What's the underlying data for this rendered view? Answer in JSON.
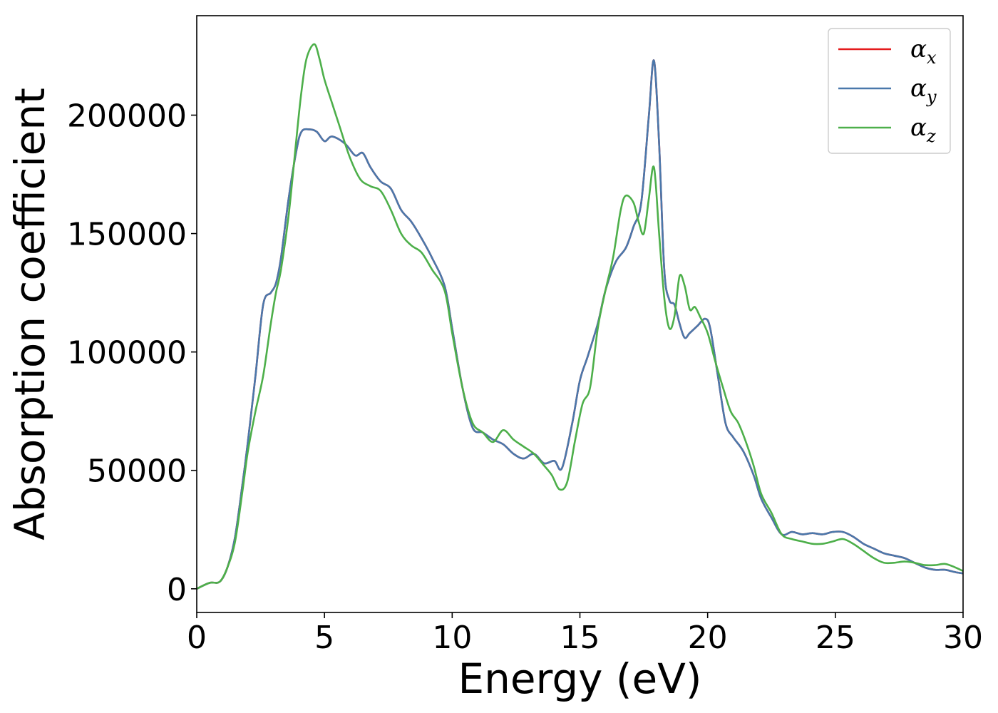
{
  "chart_data": {
    "type": "line",
    "xlabel": "Energy (eV)",
    "ylabel": "Absorption coefficient",
    "xlim": [
      0,
      30
    ],
    "ylim": [
      -10000,
      242000
    ],
    "xticks": [
      0,
      5,
      10,
      15,
      20,
      25,
      30
    ],
    "yticks": [
      0,
      50000,
      100000,
      150000,
      200000
    ],
    "grid": false,
    "legend_position": "top-right",
    "series": [
      {
        "name": "α_x",
        "label_main": "α",
        "label_sub": "x",
        "color": "#e41a1c",
        "x": [
          0,
          0.5,
          0.9,
          1.2,
          1.5,
          1.8,
          2.0,
          2.3,
          2.6,
          2.9,
          3.1,
          3.3,
          3.6,
          3.9,
          4.1,
          4.4,
          4.7,
          5.0,
          5.3,
          5.8,
          6.2,
          6.5,
          6.8,
          7.2,
          7.6,
          8.0,
          8.4,
          8.8,
          9.2,
          9.7,
          10.0,
          10.4,
          10.8,
          11.2,
          11.6,
          12.0,
          12.4,
          12.8,
          13.2,
          13.6,
          14.0,
          14.3,
          14.7,
          15.0,
          15.3,
          15.7,
          16.0,
          16.4,
          16.8,
          17.1,
          17.4,
          17.7,
          17.9,
          18.1,
          18.3,
          18.5,
          18.7,
          18.9,
          19.1,
          19.3,
          19.6,
          19.9,
          20.1,
          20.4,
          20.7,
          21.0,
          21.4,
          21.8,
          22.1,
          22.5,
          22.9,
          23.3,
          23.7,
          24.1,
          24.5,
          24.9,
          25.3,
          25.7,
          26.1,
          26.5,
          26.9,
          27.3,
          27.7,
          28.1,
          28.5,
          28.9,
          29.3,
          29.7,
          30.0
        ],
        "y": [
          0,
          2500,
          3000,
          9000,
          22000,
          45000,
          62000,
          90000,
          120000,
          125000,
          129000,
          140000,
          165000,
          185000,
          193000,
          194000,
          193000,
          189000,
          191000,
          188000,
          183000,
          184000,
          178000,
          172000,
          169000,
          160000,
          155000,
          148000,
          140000,
          128000,
          110000,
          85000,
          68000,
          66000,
          63000,
          61000,
          57000,
          55000,
          57000,
          53000,
          54000,
          51000,
          70000,
          88000,
          98000,
          112000,
          126000,
          138000,
          144000,
          153000,
          163000,
          200000,
          223000,
          188000,
          135000,
          122000,
          120000,
          112000,
          106000,
          108000,
          111000,
          114000,
          110000,
          90000,
          70000,
          64000,
          58000,
          48000,
          38000,
          30000,
          23000,
          24000,
          23000,
          23500,
          23000,
          24000,
          24000,
          22000,
          19000,
          17000,
          15000,
          14000,
          13000,
          11000,
          9000,
          8000,
          8000,
          7000,
          6500
        ]
      },
      {
        "name": "α_y",
        "label_main": "α",
        "label_sub": "y",
        "color": "#4a78ab",
        "x": [
          0,
          0.5,
          0.9,
          1.2,
          1.5,
          1.8,
          2.0,
          2.3,
          2.6,
          2.9,
          3.1,
          3.3,
          3.6,
          3.9,
          4.1,
          4.4,
          4.7,
          5.0,
          5.3,
          5.8,
          6.2,
          6.5,
          6.8,
          7.2,
          7.6,
          8.0,
          8.4,
          8.8,
          9.2,
          9.7,
          10.0,
          10.4,
          10.8,
          11.2,
          11.6,
          12.0,
          12.4,
          12.8,
          13.2,
          13.6,
          14.0,
          14.3,
          14.7,
          15.0,
          15.3,
          15.7,
          16.0,
          16.4,
          16.8,
          17.1,
          17.4,
          17.7,
          17.9,
          18.1,
          18.3,
          18.5,
          18.7,
          18.9,
          19.1,
          19.3,
          19.6,
          19.9,
          20.1,
          20.4,
          20.7,
          21.0,
          21.4,
          21.8,
          22.1,
          22.5,
          22.9,
          23.3,
          23.7,
          24.1,
          24.5,
          24.9,
          25.3,
          25.7,
          26.1,
          26.5,
          26.9,
          27.3,
          27.7,
          28.1,
          28.5,
          28.9,
          29.3,
          29.7,
          30.0
        ],
        "y": [
          0,
          2500,
          3000,
          9000,
          22000,
          45000,
          62000,
          90000,
          120000,
          125000,
          129000,
          140000,
          165000,
          185000,
          193000,
          194000,
          193000,
          189000,
          191000,
          188000,
          183000,
          184000,
          178000,
          172000,
          169000,
          160000,
          155000,
          148000,
          140000,
          128000,
          110000,
          85000,
          68000,
          66000,
          63000,
          61000,
          57000,
          55000,
          57000,
          53000,
          54000,
          51000,
          70000,
          88000,
          98000,
          112000,
          126000,
          138000,
          144000,
          153000,
          163000,
          200000,
          223000,
          188000,
          135000,
          122000,
          120000,
          112000,
          106000,
          108000,
          111000,
          114000,
          110000,
          90000,
          70000,
          64000,
          58000,
          48000,
          38000,
          30000,
          23000,
          24000,
          23000,
          23500,
          23000,
          24000,
          24000,
          22000,
          19000,
          17000,
          15000,
          14000,
          13000,
          11000,
          9000,
          8000,
          8000,
          7000,
          6500
        ]
      },
      {
        "name": "α_z",
        "label_main": "α",
        "label_sub": "z",
        "color": "#4daf4a",
        "x": [
          0,
          0.5,
          0.9,
          1.2,
          1.5,
          1.8,
          2.0,
          2.3,
          2.6,
          2.9,
          3.1,
          3.3,
          3.6,
          3.9,
          4.1,
          4.3,
          4.6,
          4.8,
          5.0,
          5.3,
          5.6,
          6.0,
          6.4,
          6.8,
          7.2,
          7.6,
          8.0,
          8.4,
          8.8,
          9.2,
          9.7,
          10.0,
          10.4,
          10.8,
          11.2,
          11.6,
          12.0,
          12.4,
          12.8,
          13.2,
          13.6,
          13.9,
          14.2,
          14.5,
          14.8,
          15.1,
          15.4,
          15.7,
          16.0,
          16.3,
          16.6,
          16.8,
          17.1,
          17.3,
          17.5,
          17.7,
          17.9,
          18.1,
          18.3,
          18.5,
          18.7,
          18.9,
          19.1,
          19.3,
          19.5,
          19.7,
          20.0,
          20.3,
          20.6,
          20.9,
          21.2,
          21.5,
          21.8,
          22.1,
          22.5,
          22.9,
          23.3,
          23.7,
          24.1,
          24.5,
          24.9,
          25.3,
          25.7,
          26.1,
          26.5,
          26.9,
          27.3,
          27.7,
          28.1,
          28.5,
          28.9,
          29.3,
          29.7,
          30.0
        ],
        "y": [
          0,
          2500,
          3000,
          9000,
          20000,
          42000,
          58000,
          75000,
          90000,
          112000,
          125000,
          135000,
          158000,
          190000,
          210000,
          224000,
          230000,
          224000,
          215000,
          205000,
          195000,
          182000,
          173000,
          170000,
          168000,
          160000,
          150000,
          145000,
          142000,
          135000,
          126000,
          108000,
          85000,
          70000,
          66000,
          62000,
          67000,
          63000,
          60000,
          57000,
          52000,
          48000,
          42000,
          45000,
          62000,
          78000,
          85000,
          110000,
          126000,
          140000,
          160000,
          166000,
          163000,
          155000,
          150000,
          165000,
          178000,
          150000,
          123000,
          110000,
          115000,
          132000,
          128000,
          118000,
          119000,
          115000,
          108000,
          96000,
          85000,
          75000,
          70000,
          62000,
          52000,
          40000,
          32000,
          23000,
          21000,
          20000,
          19000,
          19000,
          20000,
          21000,
          19000,
          16000,
          13000,
          11000,
          11000,
          11500,
          11000,
          10000,
          10000,
          10500,
          9000,
          7500
        ]
      }
    ]
  }
}
